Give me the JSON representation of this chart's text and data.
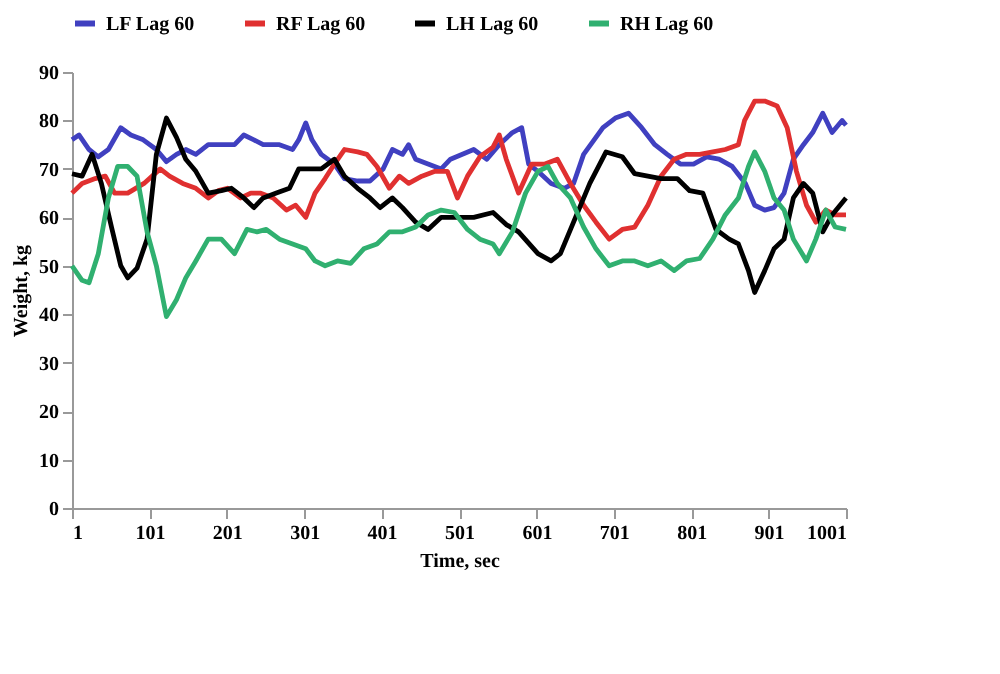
{
  "chart_data": {
    "type": "line",
    "xlabel": "Time, sec",
    "ylabel": "Weight, kg",
    "xlim": [
      1,
      1001
    ],
    "xticks": [
      1,
      101,
      201,
      301,
      401,
      501,
      601,
      701,
      801,
      901,
      1001
    ],
    "ylim": [
      0,
      90
    ],
    "yticks": [
      0,
      10,
      20,
      30,
      40,
      50,
      60,
      70,
      80,
      90
    ],
    "grid": false,
    "legend": "top",
    "series": [
      {
        "name": "LF Lag 60",
        "color": "#4040c0",
        "x": [
          1,
          10,
          23,
          35,
          48,
          64,
          77,
          93,
          110,
          123,
          136,
          148,
          161,
          177,
          194,
          211,
          223,
          236,
          248,
          269,
          286,
          294,
          303,
          311,
          323,
          340,
          353,
          370,
          386,
          403,
          415,
          428,
          436,
          445,
          461,
          478,
          490,
          520,
          537,
          553,
          570,
          582,
          591,
          603,
          620,
          637,
          649,
          662,
          687,
          703,
          720,
          737,
          754,
          770,
          787,
          804,
          821,
          837,
          854,
          871,
          883,
          896,
          908,
          921,
          933,
          946,
          958,
          971,
          983,
          996,
          1001
        ],
        "values": [
          76,
          77,
          74,
          72.5,
          74,
          78.5,
          77,
          76,
          74,
          71.5,
          73,
          74,
          73,
          75,
          75,
          75,
          77,
          76,
          75,
          75,
          74,
          76,
          79.5,
          76,
          73,
          71,
          68,
          67.5,
          67.5,
          70,
          74,
          73,
          75,
          72,
          71,
          70,
          72,
          74,
          72,
          75,
          77.5,
          78.5,
          71,
          69.5,
          67,
          66,
          67,
          73,
          78.5,
          80.5,
          81.5,
          78.5,
          75,
          73,
          71,
          71,
          72.5,
          72,
          70.5,
          67,
          62.5,
          61.5,
          62,
          65,
          72,
          75,
          77.5,
          81.5,
          77.5,
          80,
          79
        ]
      },
      {
        "name": "RF Lag 60",
        "color": "#e03030",
        "x": [
          1,
          14,
          31,
          44,
          56,
          73,
          94,
          115,
          127,
          144,
          161,
          177,
          190,
          202,
          219,
          232,
          244,
          261,
          278,
          290,
          303,
          315,
          328,
          340,
          353,
          370,
          382,
          395,
          411,
          424,
          436,
          453,
          470,
          486,
          499,
          512,
          528,
          545,
          553,
          562,
          578,
          595,
          612,
          628,
          645,
          662,
          678,
          695,
          712,
          728,
          745,
          762,
          779,
          795,
          812,
          829,
          845,
          862,
          870,
          883,
          896,
          912,
          925,
          937,
          950,
          962,
          975,
          987,
          1001
        ],
        "values": [
          65,
          67,
          68,
          68.5,
          65,
          65,
          67,
          70,
          68.5,
          67,
          66,
          64,
          65.5,
          66,
          64,
          65,
          65,
          64,
          61.5,
          62.5,
          60,
          65,
          68,
          71,
          74,
          73.5,
          73,
          70.5,
          66,
          68.5,
          67,
          68.5,
          69.5,
          69.5,
          64,
          68.5,
          72.5,
          74.5,
          77,
          72,
          65,
          71,
          71,
          72,
          67,
          62.5,
          59,
          55.5,
          57.5,
          58,
          62.5,
          68.5,
          72,
          73,
          73,
          73.5,
          74,
          75,
          80,
          84,
          84,
          83,
          78.5,
          69.5,
          62.5,
          59,
          61.5,
          60.5,
          60.5
        ]
      },
      {
        "name": "LH Lag 60",
        "color": "#000000",
        "x": [
          1,
          14,
          27,
          39,
          52,
          64,
          73,
          85,
          98,
          110,
          123,
          136,
          148,
          161,
          177,
          194,
          207,
          223,
          236,
          248,
          265,
          282,
          294,
          311,
          323,
          340,
          353,
          370,
          386,
          399,
          415,
          428,
          445,
          461,
          478,
          495,
          520,
          545,
          562,
          578,
          603,
          620,
          632,
          649,
          670,
          691,
          712,
          728,
          745,
          762,
          783,
          799,
          816,
          833,
          850,
          862,
          875,
          883,
          896,
          908,
          921,
          933,
          946,
          958,
          971,
          983,
          1001
        ],
        "values": [
          69,
          68.5,
          73,
          67,
          58,
          50,
          47.5,
          49.5,
          55.5,
          73,
          80.5,
          76.5,
          72,
          69.5,
          65,
          65.5,
          66,
          64,
          62,
          64,
          65,
          66,
          70,
          70,
          70,
          72,
          68.5,
          66,
          64,
          62,
          64,
          62,
          59,
          57.5,
          60,
          60,
          60,
          61,
          58.5,
          57,
          52.5,
          51,
          52.5,
          59,
          67,
          73.5,
          72.5,
          69,
          68.5,
          68,
          68,
          65.5,
          65,
          57.5,
          55.5,
          54.5,
          49,
          44.5,
          49,
          53.5,
          55.5,
          64,
          67,
          65,
          57,
          60.5,
          64
        ]
      },
      {
        "name": "RH Lag 60",
        "color": "#30b070",
        "x": [
          1,
          14,
          23,
          35,
          48,
          60,
          73,
          85,
          98,
          110,
          123,
          136,
          148,
          161,
          177,
          194,
          211,
          227,
          240,
          252,
          269,
          286,
          303,
          315,
          328,
          344,
          361,
          378,
          395,
          411,
          428,
          445,
          461,
          478,
          495,
          512,
          528,
          545,
          553,
          570,
          587,
          603,
          616,
          628,
          645,
          662,
          678,
          695,
          712,
          728,
          745,
          762,
          779,
          795,
          812,
          829,
          845,
          862,
          875,
          883,
          896,
          908,
          921,
          933,
          950,
          962,
          975,
          987,
          1001
        ],
        "values": [
          50,
          47,
          46.5,
          52.5,
          64,
          70.5,
          70.5,
          68.5,
          57,
          50,
          39.5,
          43,
          47.5,
          51,
          55.5,
          55.5,
          52.5,
          57.5,
          57,
          57.5,
          55.5,
          54.5,
          53.5,
          51,
          50,
          51,
          50.5,
          53.5,
          54.5,
          57,
          57,
          58,
          60.5,
          61.5,
          61,
          57.5,
          55.5,
          54.5,
          52.5,
          57,
          65,
          69.5,
          70.5,
          67,
          64,
          58,
          53.5,
          50,
          51,
          51,
          50,
          51,
          49,
          51,
          51.5,
          55.5,
          60.5,
          64,
          70.5,
          73.5,
          69.5,
          64,
          61.5,
          55.5,
          51,
          55.5,
          61.5,
          58,
          57.5
        ]
      }
    ]
  }
}
